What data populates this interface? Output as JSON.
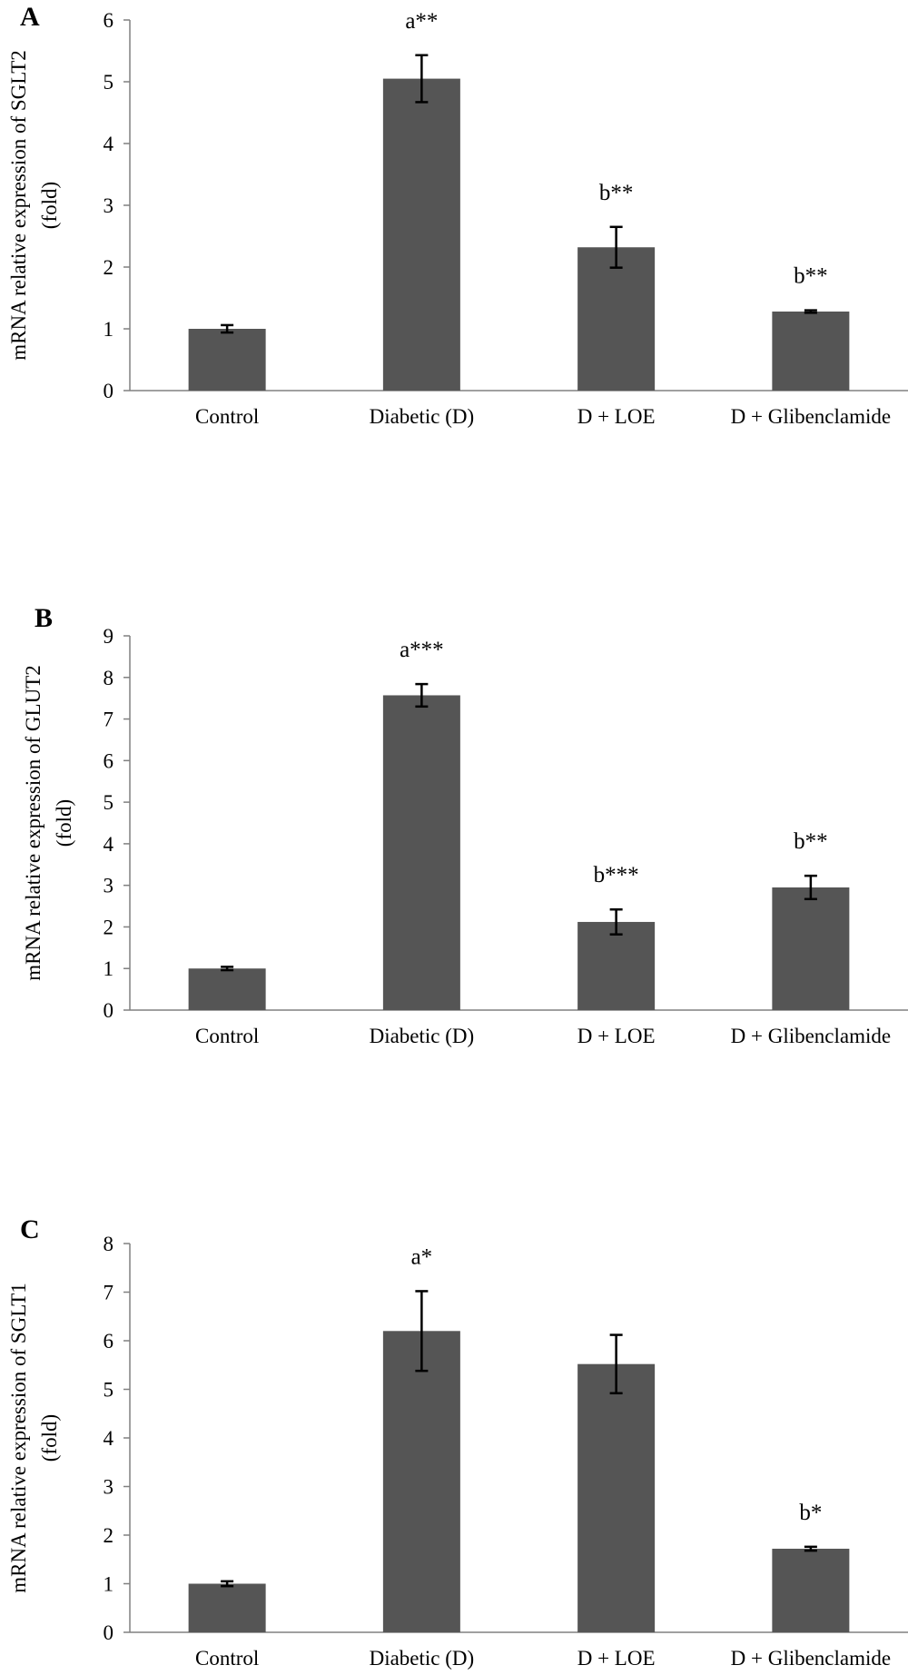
{
  "chart_data": [
    {
      "type": "bar",
      "panel_label": "A",
      "ylabel_line1": "mRNA relative expression of SGLT2",
      "ylabel_line2": "(fold)",
      "ylim": [
        0,
        6
      ],
      "yticks": [
        "0",
        "1",
        "2",
        "3",
        "4",
        "5",
        "6"
      ],
      "categories": [
        "Control",
        "Diabetic (D)",
        "D + LOE",
        "D + Glibenclamide"
      ],
      "values": [
        1.0,
        5.05,
        2.32,
        1.28
      ],
      "errors": [
        0.06,
        0.38,
        0.33,
        0.02
      ],
      "annotations": [
        "",
        "a**",
        "b**",
        "b**"
      ],
      "bar_color": "#555555"
    },
    {
      "type": "bar",
      "panel_label": "B",
      "ylabel_line1": "mRNA relative expression of GLUT2",
      "ylabel_line2": "(fold)",
      "ylim": [
        0,
        9
      ],
      "yticks": [
        "0",
        "1",
        "2",
        "3",
        "4",
        "5",
        "6",
        "7",
        "8",
        "9"
      ],
      "categories": [
        "Control",
        "Diabetic (D)",
        "D + LOE",
        "D + Glibenclamide"
      ],
      "values": [
        1.0,
        7.57,
        2.12,
        2.95
      ],
      "errors": [
        0.04,
        0.27,
        0.3,
        0.28
      ],
      "annotations": [
        "",
        "a***",
        "b***",
        "b**"
      ],
      "bar_color": "#555555"
    },
    {
      "type": "bar",
      "panel_label": "C",
      "ylabel_line1": "mRNA relative expression of SGLT1",
      "ylabel_line2": "(fold)",
      "ylim": [
        0,
        8
      ],
      "yticks": [
        "0",
        "1",
        "2",
        "3",
        "4",
        "5",
        "6",
        "7",
        "8"
      ],
      "categories": [
        "Control",
        "Diabetic (D)",
        "D + LOE",
        "D + Glibenclamide"
      ],
      "values": [
        1.0,
        6.2,
        5.52,
        1.72
      ],
      "errors": [
        0.05,
        0.82,
        0.6,
        0.04
      ],
      "annotations": [
        "",
        "a*",
        "",
        "b*"
      ],
      "bar_color": "#555555"
    }
  ]
}
